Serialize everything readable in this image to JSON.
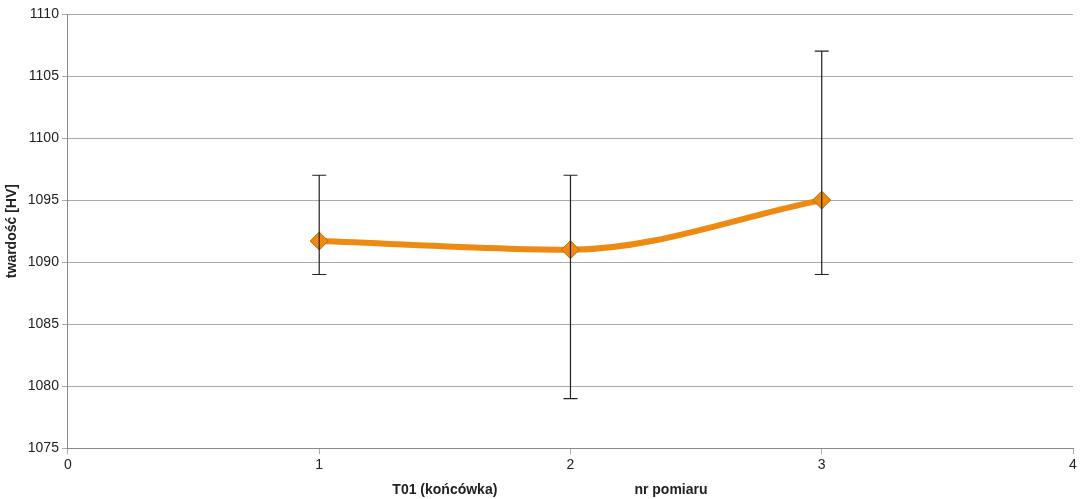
{
  "chart_data": {
    "type": "line",
    "ylabel": "twardość [HV]",
    "xlabel": "nr pomiaru",
    "annotations": [
      "T01 (końcówka)"
    ],
    "x": [
      1,
      2,
      3
    ],
    "series": [
      {
        "color": "#ec8a12",
        "values": [
          1091.7,
          1091,
          1095
        ],
        "errors": [
          [
            1089,
            1097
          ],
          [
            1079,
            1097
          ],
          [
            1089,
            1107
          ]
        ]
      }
    ],
    "xlim": [
      0,
      4
    ],
    "xticks": [
      0,
      1,
      2,
      3,
      4
    ],
    "ylim": [
      1075,
      1110
    ],
    "yticks": [
      1075,
      1080,
      1085,
      1090,
      1095,
      1100,
      1105,
      1110
    ],
    "grid": "y",
    "legend": false,
    "marker": "diamond",
    "line_style": "solid"
  }
}
